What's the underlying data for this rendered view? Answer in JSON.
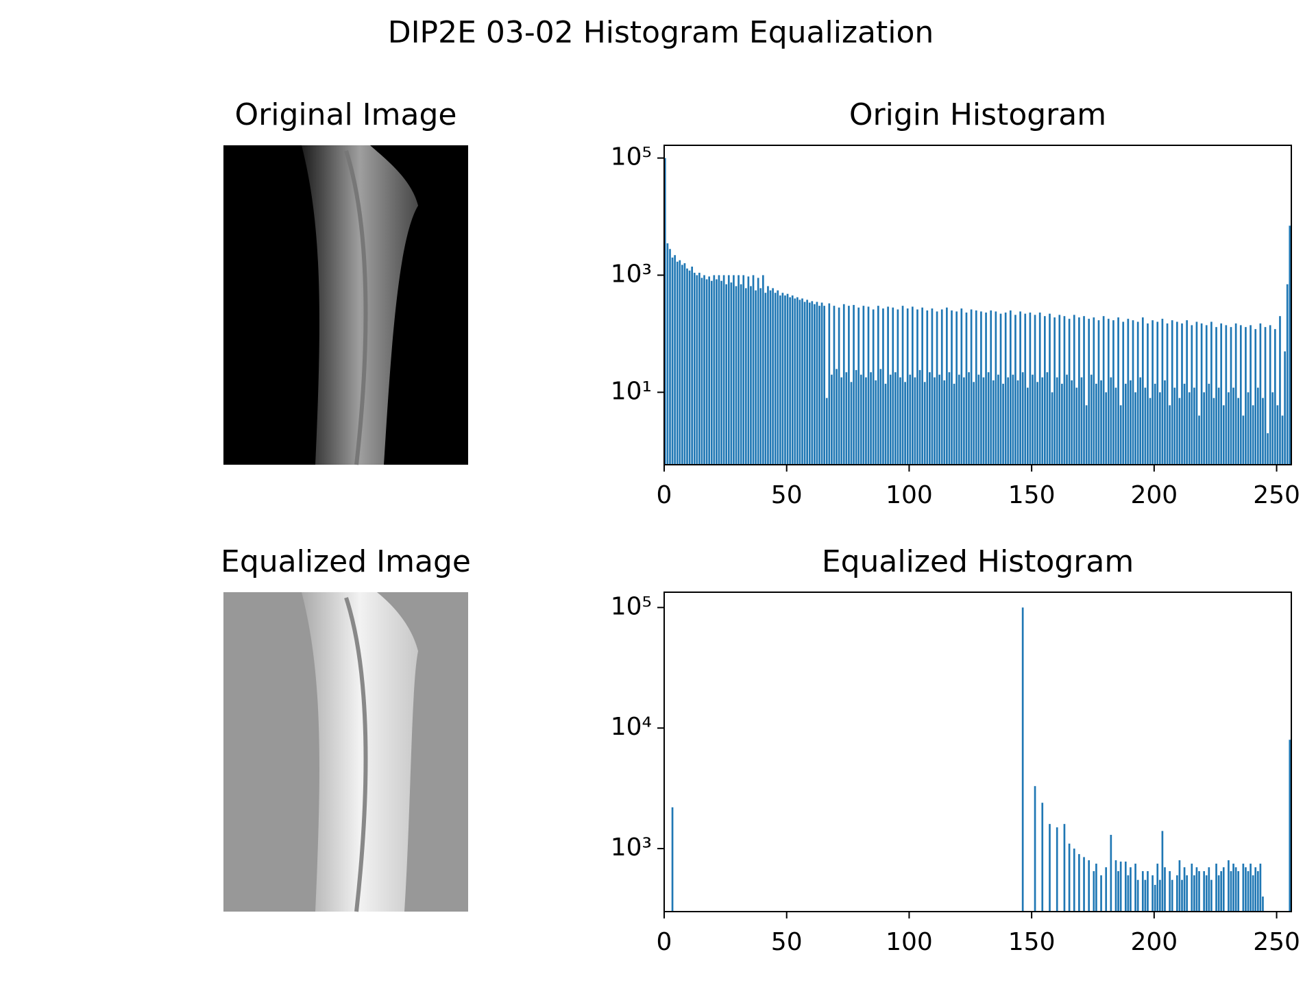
{
  "title": "DIP2E 03-02 Histogram Equalization",
  "chart_data": [
    {
      "type": "image",
      "title": "Original Image"
    },
    {
      "type": "histogram",
      "title": "Origin Histogram",
      "color": "#1f77b4",
      "yscale": "log",
      "xlim": [
        0,
        256
      ],
      "xticks": [
        0,
        50,
        100,
        150,
        200,
        250
      ],
      "ylim": [
        0.58,
        165000
      ],
      "yticks": [
        {
          "value": 10,
          "label": "10¹"
        },
        {
          "value": 1000,
          "label": "10³"
        },
        {
          "value": 100000,
          "label": "10⁵"
        }
      ],
      "bins": [
        0,
        1,
        2,
        3,
        4,
        5,
        6,
        7,
        8,
        9,
        10,
        11,
        12,
        13,
        14,
        15,
        16,
        17,
        18,
        19,
        20,
        21,
        22,
        23,
        24,
        25,
        26,
        27,
        28,
        29,
        30,
        31,
        32,
        33,
        34,
        35,
        36,
        37,
        38,
        39,
        40,
        41,
        42,
        43,
        44,
        45,
        46,
        47,
        48,
        49,
        50,
        51,
        52,
        53,
        54,
        55,
        56,
        57,
        58,
        59,
        60,
        61,
        62,
        63,
        64,
        65,
        66,
        67,
        68,
        69,
        70,
        71,
        72,
        73,
        74,
        75,
        76,
        77,
        78,
        79,
        80,
        81,
        82,
        83,
        84,
        85,
        86,
        87,
        88,
        89,
        90,
        91,
        92,
        93,
        94,
        95,
        96,
        97,
        98,
        99,
        100,
        101,
        102,
        103,
        104,
        105,
        106,
        107,
        108,
        109,
        110,
        111,
        112,
        113,
        114,
        115,
        116,
        117,
        118,
        119,
        120,
        121,
        122,
        123,
        124,
        125,
        126,
        127,
        128,
        129,
        130,
        131,
        132,
        133,
        134,
        135,
        136,
        137,
        138,
        139,
        140,
        141,
        142,
        143,
        144,
        145,
        146,
        147,
        148,
        149,
        150,
        151,
        152,
        153,
        154,
        155,
        156,
        157,
        158,
        159,
        160,
        161,
        162,
        163,
        164,
        165,
        166,
        167,
        168,
        169,
        170,
        171,
        172,
        173,
        174,
        175,
        176,
        177,
        178,
        179,
        180,
        181,
        182,
        183,
        184,
        185,
        186,
        187,
        188,
        189,
        190,
        191,
        192,
        193,
        194,
        195,
        196,
        197,
        198,
        199,
        200,
        201,
        202,
        203,
        204,
        205,
        206,
        207,
        208,
        209,
        210,
        211,
        212,
        213,
        214,
        215,
        216,
        217,
        218,
        219,
        220,
        221,
        222,
        223,
        224,
        225,
        226,
        227,
        228,
        229,
        230,
        231,
        232,
        233,
        234,
        235,
        236,
        237,
        238,
        239,
        240,
        241,
        242,
        243,
        244,
        245,
        246,
        247,
        248,
        249,
        250,
        251,
        252,
        253,
        254,
        255,
        256
      ],
      "values": [
        100000,
        3500,
        2800,
        2000,
        2200,
        1700,
        1800,
        1500,
        1600,
        1300,
        1200,
        1400,
        1100,
        1000,
        1100,
        900,
        1000,
        850,
        950,
        800,
        1000,
        850,
        1000,
        800,
        1000,
        700,
        1000,
        750,
        1000,
        650,
        1000,
        700,
        1000,
        600,
        950,
        650,
        1000,
        550,
        900,
        600,
        1000,
        500,
        650,
        550,
        600,
        500,
        550,
        450,
        500,
        450,
        480,
        420,
        450,
        400,
        420,
        380,
        400,
        350,
        380,
        340,
        360,
        320,
        350,
        300,
        340,
        300,
        8,
        330,
        20,
        300,
        25,
        280,
        18,
        320,
        22,
        300,
        15,
        310,
        24,
        280,
        20,
        300,
        18,
        290,
        22,
        260,
        16,
        300,
        25,
        270,
        14,
        290,
        20,
        280,
        22,
        260,
        18,
        300,
        15,
        270,
        20,
        290,
        18,
        260,
        24,
        280,
        15,
        250,
        22,
        270,
        18,
        240,
        20,
        260,
        16,
        280,
        22,
        250,
        14,
        240,
        20,
        270,
        18,
        230,
        22,
        260,
        15,
        250,
        20,
        240,
        18,
        230,
        22,
        250,
        16,
        240,
        20,
        220,
        14,
        230,
        18,
        250,
        20,
        210,
        16,
        240,
        22,
        220,
        12,
        230,
        20,
        210,
        15,
        230,
        18,
        200,
        22,
        220,
        10,
        190,
        18,
        210,
        14,
        200,
        20,
        180,
        16,
        210,
        12,
        190,
        18,
        200,
        6,
        180,
        20,
        190,
        14,
        170,
        16,
        200,
        10,
        180,
        18,
        170,
        12,
        190,
        6,
        160,
        14,
        180,
        16,
        170,
        10,
        160,
        18,
        190,
        12,
        150,
        8,
        170,
        14,
        160,
        10,
        180,
        16,
        150,
        6,
        170,
        12,
        160,
        8,
        150,
        14,
        170,
        10,
        140,
        12,
        160,
        4,
        150,
        10,
        140,
        14,
        160,
        8,
        130,
        12,
        150,
        6,
        140,
        10,
        130,
        12,
        150,
        8,
        140,
        4,
        130,
        10,
        140,
        6,
        120,
        12,
        150,
        8,
        130,
        2,
        140,
        10,
        120,
        6,
        200,
        4,
        50,
        700,
        7000
      ]
    },
    {
      "type": "image",
      "title": "Equalized Image"
    },
    {
      "type": "histogram",
      "title": "Equalized Histogram",
      "color": "#1f77b4",
      "yscale": "log",
      "xlim": [
        0,
        256
      ],
      "xticks": [
        0,
        50,
        100,
        150,
        200,
        250
      ],
      "ylim": [
        300,
        134000
      ],
      "yticks": [
        {
          "value": 1000,
          "label": "10³"
        },
        {
          "value": 10000,
          "label": "10⁴"
        },
        {
          "value": 100000,
          "label": "10⁵"
        }
      ],
      "bins": [
        0,
        1,
        2,
        3,
        4,
        5,
        6,
        7,
        8,
        9,
        10,
        11,
        12,
        13,
        14,
        15,
        16,
        17,
        18,
        19,
        20,
        21,
        22,
        23,
        24,
        25,
        26,
        27,
        28,
        29,
        30,
        31,
        32,
        33,
        34,
        35,
        36,
        37,
        38,
        39,
        40,
        41,
        42,
        43,
        44,
        45,
        46,
        47,
        48,
        49,
        50,
        51,
        52,
        53,
        54,
        55,
        56,
        57,
        58,
        59,
        60,
        61,
        62,
        63,
        64,
        65,
        66,
        67,
        68,
        69,
        70,
        71,
        72,
        73,
        74,
        75,
        76,
        77,
        78,
        79,
        80,
        81,
        82,
        83,
        84,
        85,
        86,
        87,
        88,
        89,
        90,
        91,
        92,
        93,
        94,
        95,
        96,
        97,
        98,
        99,
        100,
        101,
        102,
        103,
        104,
        105,
        106,
        107,
        108,
        109,
        110,
        111,
        112,
        113,
        114,
        115,
        116,
        117,
        118,
        119,
        120,
        121,
        122,
        123,
        124,
        125,
        126,
        127,
        128,
        129,
        130,
        131,
        132,
        133,
        134,
        135,
        136,
        137,
        138,
        139,
        140,
        141,
        142,
        143,
        144,
        145,
        146,
        147,
        148,
        149,
        150,
        151,
        152,
        153,
        154,
        155,
        156,
        157,
        158,
        159,
        160,
        161,
        162,
        163,
        164,
        165,
        166,
        167,
        168,
        169,
        170,
        171,
        172,
        173,
        174,
        175,
        176,
        177,
        178,
        179,
        180,
        181,
        182,
        183,
        184,
        185,
        186,
        187,
        188,
        189,
        190,
        191,
        192,
        193,
        194,
        195,
        196,
        197,
        198,
        199,
        200,
        201,
        202,
        203,
        204,
        205,
        206,
        207,
        208,
        209,
        210,
        211,
        212,
        213,
        214,
        215,
        216,
        217,
        218,
        219,
        220,
        221,
        222,
        223,
        224,
        225,
        226,
        227,
        228,
        229,
        230,
        231,
        232,
        233,
        234,
        235,
        236,
        237,
        238,
        239,
        240,
        241,
        242,
        243,
        244,
        245,
        246,
        247,
        248,
        249,
        250,
        251,
        252,
        253,
        254,
        255,
        256
      ],
      "values": [
        0,
        0,
        0,
        2200,
        0,
        0,
        0,
        0,
        0,
        0,
        0,
        0,
        0,
        0,
        0,
        0,
        0,
        0,
        0,
        0,
        0,
        0,
        0,
        0,
        0,
        0,
        0,
        0,
        0,
        0,
        0,
        0,
        0,
        0,
        0,
        0,
        0,
        0,
        0,
        0,
        0,
        0,
        0,
        0,
        0,
        0,
        0,
        0,
        0,
        0,
        0,
        0,
        0,
        0,
        0,
        0,
        0,
        0,
        0,
        0,
        0,
        0,
        0,
        0,
        0,
        0,
        0,
        0,
        0,
        0,
        0,
        0,
        0,
        0,
        0,
        0,
        0,
        0,
        0,
        0,
        0,
        0,
        0,
        0,
        0,
        0,
        0,
        0,
        0,
        0,
        0,
        0,
        0,
        0,
        0,
        0,
        0,
        0,
        0,
        0,
        0,
        0,
        0,
        0,
        0,
        0,
        0,
        0,
        0,
        0,
        0,
        0,
        0,
        0,
        0,
        0,
        0,
        0,
        0,
        0,
        0,
        0,
        0,
        0,
        0,
        0,
        0,
        0,
        0,
        0,
        0,
        0,
        0,
        0,
        0,
        0,
        0,
        0,
        0,
        0,
        0,
        0,
        0,
        0,
        0,
        0,
        100000,
        0,
        0,
        0,
        0,
        3300,
        0,
        0,
        2400,
        0,
        0,
        1600,
        0,
        0,
        1500,
        0,
        0,
        1600,
        0,
        1100,
        0,
        1000,
        0,
        900,
        0,
        850,
        0,
        800,
        0,
        650,
        750,
        0,
        600,
        0,
        700,
        0,
        1300,
        0,
        800,
        650,
        780,
        0,
        780,
        600,
        700,
        0,
        750,
        550,
        0,
        650,
        550,
        650,
        0,
        600,
        500,
        750,
        550,
        1400,
        700,
        0,
        650,
        550,
        0,
        600,
        800,
        550,
        700,
        600,
        0,
        750,
        600,
        700,
        650,
        0,
        650,
        600,
        700,
        550,
        0,
        750,
        600,
        650,
        700,
        0,
        800,
        650,
        750,
        700,
        650,
        0,
        750,
        700,
        650,
        750,
        600,
        700,
        650,
        750,
        400,
        0,
        0,
        0,
        0,
        0,
        0,
        0,
        0,
        0,
        0,
        8000
      ]
    }
  ]
}
